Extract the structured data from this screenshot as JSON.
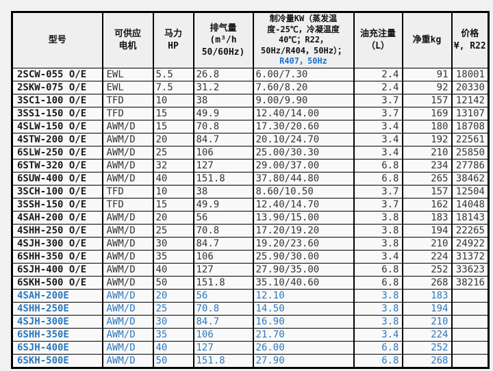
{
  "colors": {
    "page_background": "#f1f1f1",
    "header_background": "#efefef",
    "cell_background": "#f9f9f9",
    "grid_border": "#000000",
    "normal_text": "#333333",
    "model_text": "#1a1a1a",
    "highlight_blue": "#2a78c2",
    "header_blue": "#1c6fd2"
  },
  "table": {
    "header": {
      "model": "型号",
      "motor": "可供应\n电机",
      "hp": "马力\nHP",
      "disp": "排气量\n(m³/h\n50/60Hz)",
      "cooling_black": "制冷量KW（蒸发温度-25℃，冷凝温度40℃；R22，50Hz/R404，50Hz）；",
      "cooling_blue": "R407，50Hz",
      "oil": "油充注量\n（L）",
      "weight": "净重kg",
      "price": "价格\n¥, R22"
    },
    "rows": [
      {
        "model": "2SCW-055 O/E",
        "motor": "EWL",
        "hp": "5.5",
        "disp": "26.8",
        "cooling": "6.00/7.30",
        "oil": "2.4",
        "weight": "91",
        "price": "18001",
        "style": "black"
      },
      {
        "model": "2SKW-075 O/E",
        "motor": "EWL",
        "hp": "7.5",
        "disp": "31.2",
        "cooling": "7.60/8.20",
        "oil": "2.4",
        "weight": "92",
        "price": "20330",
        "style": "black"
      },
      {
        "model": "3SC1-100 O/E",
        "motor": "TFD",
        "hp": "10",
        "disp": "38",
        "cooling": "9.00/9.90",
        "oil": "3.7",
        "weight": "157",
        "price": "12142",
        "style": "black"
      },
      {
        "model": "3SS1-150 O/E",
        "motor": "TFD",
        "hp": "15",
        "disp": "49.9",
        "cooling": "12.40/14.00",
        "oil": "3.7",
        "weight": "169",
        "price": "13107",
        "style": "black"
      },
      {
        "model": "4SLW-150 O/E",
        "motor": "AWM/D",
        "hp": "15",
        "disp": "70.8",
        "cooling": "17.30/20.60",
        "oil": "3.4",
        "weight": "180",
        "price": "18708",
        "style": "black"
      },
      {
        "model": "4STW-200 O/E",
        "motor": "AWM/D",
        "hp": "20",
        "disp": "84.7",
        "cooling": "20.10/24.70",
        "oil": "3.4",
        "weight": "192",
        "price": "22561",
        "style": "black"
      },
      {
        "model": "6SLW-250 O/E",
        "motor": "AWM/D",
        "hp": "25",
        "disp": "106",
        "cooling": "25.00/30.30",
        "oil": "3.4",
        "weight": "210",
        "price": "25850",
        "style": "black"
      },
      {
        "model": "6STW-320 O/E",
        "motor": "AWM/D",
        "hp": "32",
        "disp": "127",
        "cooling": "29.00/37.00",
        "oil": "6.8",
        "weight": "234",
        "price": "27786",
        "style": "black"
      },
      {
        "model": "6SUW-400 O/E",
        "motor": "AWM/D",
        "hp": "40",
        "disp": "151.8",
        "cooling": "37.80/44.80",
        "oil": "6.8",
        "weight": "265",
        "price": "38462",
        "style": "black"
      },
      {
        "model": "3SCH-100 O/E",
        "motor": "TFD",
        "hp": "10",
        "disp": "38",
        "cooling": "8.60/10.50",
        "oil": "3.7",
        "weight": "157",
        "price": "12504",
        "style": "black"
      },
      {
        "model": "3SSH-150 O/E",
        "motor": "TFD",
        "hp": "15",
        "disp": "49.9",
        "cooling": "12.40/14.70",
        "oil": "3.7",
        "weight": "162",
        "price": "14048",
        "style": "black"
      },
      {
        "model": "4SAH-200 O/E",
        "motor": "AWM/D",
        "hp": "20",
        "disp": "56",
        "cooling": "13.90/15.00",
        "oil": "3.8",
        "weight": "183",
        "price": "18143",
        "style": "black"
      },
      {
        "model": "4SHH-250 O/E",
        "motor": "AWM/D",
        "hp": "25",
        "disp": "70.8",
        "cooling": "17.20/19.20",
        "oil": "3.8",
        "weight": "194",
        "price": "22265",
        "style": "black"
      },
      {
        "model": "4SJH-300 O/E",
        "motor": "AWM/D",
        "hp": "30",
        "disp": "84.7",
        "cooling": "19.20/23.60",
        "oil": "3.8",
        "weight": "210",
        "price": "24922",
        "style": "black"
      },
      {
        "model": "6SHH-350 O/E",
        "motor": "AWM/D",
        "hp": "35",
        "disp": "106",
        "cooling": "25.90/30.00",
        "oil": "3.4",
        "weight": "224",
        "price": "31372",
        "style": "black"
      },
      {
        "model": "6SJH-400 O/E",
        "motor": "AWM/D",
        "hp": "40",
        "disp": "127",
        "cooling": "27.90/35.00",
        "oil": "6.8",
        "weight": "252",
        "price": "33623",
        "style": "black"
      },
      {
        "model": "6SKH-500 O/E",
        "motor": "AWM/D",
        "hp": "50",
        "disp": "151.8",
        "cooling": "35.10/40.60",
        "oil": "6.8",
        "weight": "268",
        "price": "38216",
        "style": "black"
      },
      {
        "model": "4SAH-200E",
        "motor": "AWM/D",
        "hp": "20",
        "disp": "56",
        "cooling": "12.10",
        "oil": "3.8",
        "weight": "183",
        "price": "",
        "style": "blue"
      },
      {
        "model": "4SHH-250E",
        "motor": "AWM/D",
        "hp": "25",
        "disp": "70.8",
        "cooling": "14.50",
        "oil": "3.8",
        "weight": "194",
        "price": "",
        "style": "blue"
      },
      {
        "model": "4SJH-300E",
        "motor": "AWM/D",
        "hp": "30",
        "disp": "84.7",
        "cooling": "16.90",
        "oil": "3.8",
        "weight": "210",
        "price": "",
        "style": "blue"
      },
      {
        "model": "6SHH-350E",
        "motor": "AWM/D",
        "hp": "35",
        "disp": "106",
        "cooling": "21.70",
        "oil": "3.4",
        "weight": "224",
        "price": "",
        "style": "blue"
      },
      {
        "model": "6SJH-400E",
        "motor": "AWM/D",
        "hp": "40",
        "disp": "127",
        "cooling": "26.00",
        "oil": "6.8",
        "weight": "252",
        "price": "",
        "style": "blue"
      },
      {
        "model": "6SKH-500E",
        "motor": "AWM/D",
        "hp": "50",
        "disp": "151.8",
        "cooling": "27.90",
        "oil": "6.8",
        "weight": "268",
        "price": "",
        "style": "blue"
      }
    ]
  }
}
